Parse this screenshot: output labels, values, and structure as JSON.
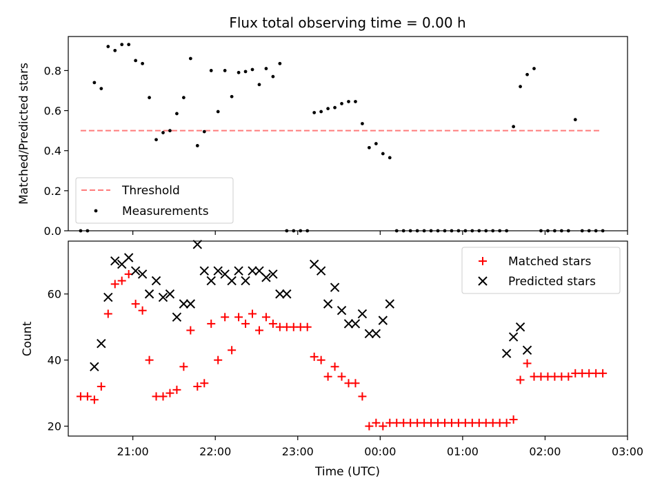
{
  "chart_data": [
    {
      "type": "scatter",
      "title": "Flux total observing time = 0.00 h",
      "ylabel": "Matched/Predicted stars",
      "ylim": [
        0.0,
        0.97
      ],
      "yticks": [
        "0.0",
        "0.2",
        "0.4",
        "0.6",
        "0.8"
      ],
      "legend_position": "lower-left",
      "colors": {
        "threshold": "#ff7a7a",
        "measurements": "#000000"
      },
      "series": [
        {
          "name": "Threshold",
          "style": "dashed-line",
          "x": [
            "20:22",
            "02:40"
          ],
          "y": [
            0.5,
            0.5
          ]
        },
        {
          "name": "Measurements",
          "style": "point",
          "x": [
            "20:22",
            "20:27",
            "20:32",
            "20:37",
            "20:42",
            "20:47",
            "20:52",
            "20:57",
            "21:02",
            "21:07",
            "21:12",
            "21:17",
            "21:22",
            "21:27",
            "21:32",
            "21:37",
            "21:42",
            "21:47",
            "21:52",
            "21:57",
            "22:02",
            "22:07",
            "22:12",
            "22:17",
            "22:22",
            "22:27",
            "22:32",
            "22:37",
            "22:42",
            "22:47",
            "22:52",
            "22:57",
            "23:02",
            "23:07",
            "23:12",
            "23:17",
            "23:22",
            "23:27",
            "23:32",
            "23:37",
            "23:42",
            "23:47",
            "23:52",
            "23:57",
            "00:02",
            "00:07",
            "00:12",
            "00:17",
            "00:22",
            "00:27",
            "00:32",
            "00:37",
            "00:42",
            "00:47",
            "00:52",
            "00:57",
            "01:02",
            "01:07",
            "01:12",
            "01:17",
            "01:22",
            "01:27",
            "01:32",
            "01:37",
            "01:42",
            "01:47",
            "01:52",
            "01:57",
            "02:02",
            "02:07",
            "02:12",
            "02:17",
            "02:22",
            "02:27",
            "02:32",
            "02:37",
            "02:42"
          ],
          "y": [
            0.0,
            0.0,
            0.74,
            0.71,
            0.92,
            0.9,
            0.93,
            0.93,
            0.85,
            0.835,
            0.665,
            0.455,
            0.49,
            0.5,
            0.585,
            0.665,
            0.86,
            0.425,
            0.495,
            0.8,
            0.595,
            0.8,
            0.67,
            0.79,
            0.795,
            0.805,
            0.73,
            0.81,
            0.77,
            0.835,
            0.0,
            0.0,
            0.0,
            0.0,
            0.59,
            0.595,
            0.61,
            0.615,
            0.635,
            0.645,
            0.645,
            0.535,
            0.415,
            0.435,
            0.385,
            0.365,
            0.0,
            0.0,
            0.0,
            0.0,
            0.0,
            0.0,
            0.0,
            0.0,
            0.0,
            0.0,
            0.0,
            0.0,
            0.0,
            0.0,
            0.0,
            0.0,
            0.0,
            0.52,
            0.72,
            0.78,
            0.81,
            0.0,
            0.0,
            0.0,
            0.0,
            0.0,
            0.555,
            0.0,
            0.0,
            0.0,
            0.0
          ]
        }
      ]
    },
    {
      "type": "scatter",
      "xlabel": "Time (UTC)",
      "ylabel": "Count",
      "ylim": [
        17,
        76
      ],
      "yticks": [
        "20",
        "40",
        "60"
      ],
      "xlim": [
        "20:13",
        "03:00"
      ],
      "xticks": [
        "21:00",
        "22:00",
        "23:00",
        "00:00",
        "01:00",
        "02:00",
        "03:00"
      ],
      "legend_position": "upper-right",
      "colors": {
        "matched": "#ff0000",
        "predicted": "#000000"
      },
      "series": [
        {
          "name": "Matched stars",
          "marker": "+",
          "x": [
            "20:22",
            "20:27",
            "20:32",
            "20:37",
            "20:42",
            "20:47",
            "20:52",
            "20:57",
            "21:02",
            "21:07",
            "21:12",
            "21:17",
            "21:22",
            "21:27",
            "21:32",
            "21:37",
            "21:42",
            "21:47",
            "21:52",
            "21:57",
            "22:02",
            "22:07",
            "22:12",
            "22:17",
            "22:22",
            "22:27",
            "22:32",
            "22:37",
            "22:42",
            "22:47",
            "22:52",
            "22:57",
            "23:02",
            "23:07",
            "23:12",
            "23:17",
            "23:22",
            "23:27",
            "23:32",
            "23:37",
            "23:42",
            "23:47",
            "23:52",
            "23:57",
            "00:02",
            "00:07",
            "00:12",
            "00:17",
            "00:22",
            "00:27",
            "00:32",
            "00:37",
            "00:42",
            "00:47",
            "00:52",
            "00:57",
            "01:02",
            "01:07",
            "01:12",
            "01:17",
            "01:22",
            "01:27",
            "01:32",
            "01:37",
            "01:42",
            "01:47",
            "01:52",
            "01:57",
            "02:02",
            "02:07",
            "02:12",
            "02:17",
            "02:22",
            "02:27",
            "02:32",
            "02:37",
            "02:42"
          ],
          "y": [
            29,
            29,
            28,
            32,
            54,
            63,
            64,
            66,
            57,
            55,
            40,
            29,
            29,
            30,
            31,
            38,
            49,
            32,
            33,
            51,
            40,
            53,
            43,
            53,
            51,
            54,
            49,
            53,
            51,
            50,
            50,
            50,
            50,
            50,
            41,
            40,
            35,
            38,
            35,
            33,
            33,
            29,
            20,
            21,
            20,
            21,
            21,
            21,
            21,
            21,
            21,
            21,
            21,
            21,
            21,
            21,
            21,
            21,
            21,
            21,
            21,
            21,
            21,
            22,
            34,
            39,
            35,
            35,
            35,
            35,
            35,
            35,
            36,
            36,
            36,
            36,
            36
          ]
        },
        {
          "name": "Predicted stars",
          "marker": "x",
          "x": [
            "20:32",
            "20:37",
            "20:42",
            "20:47",
            "20:52",
            "20:57",
            "21:02",
            "21:07",
            "21:12",
            "21:17",
            "21:22",
            "21:27",
            "21:32",
            "21:37",
            "21:42",
            "21:47",
            "21:52",
            "21:57",
            "22:02",
            "22:07",
            "22:12",
            "22:17",
            "22:22",
            "22:27",
            "22:32",
            "22:37",
            "22:42",
            "22:47",
            "22:52",
            "23:12",
            "23:17",
            "23:22",
            "23:27",
            "23:32",
            "23:37",
            "23:42",
            "23:47",
            "23:52",
            "23:57",
            "00:02",
            "00:07",
            "01:32",
            "01:37",
            "01:42",
            "01:47"
          ],
          "y": [
            38,
            45,
            59,
            70,
            69,
            71,
            67,
            66,
            60,
            64,
            59,
            60,
            53,
            57,
            57,
            75,
            67,
            64,
            67,
            66,
            64,
            67,
            64,
            67,
            67,
            65,
            66,
            60,
            60,
            69,
            67,
            57,
            62,
            55,
            51,
            51,
            54,
            48,
            48,
            52,
            57,
            42,
            47,
            50,
            43
          ]
        }
      ]
    }
  ]
}
